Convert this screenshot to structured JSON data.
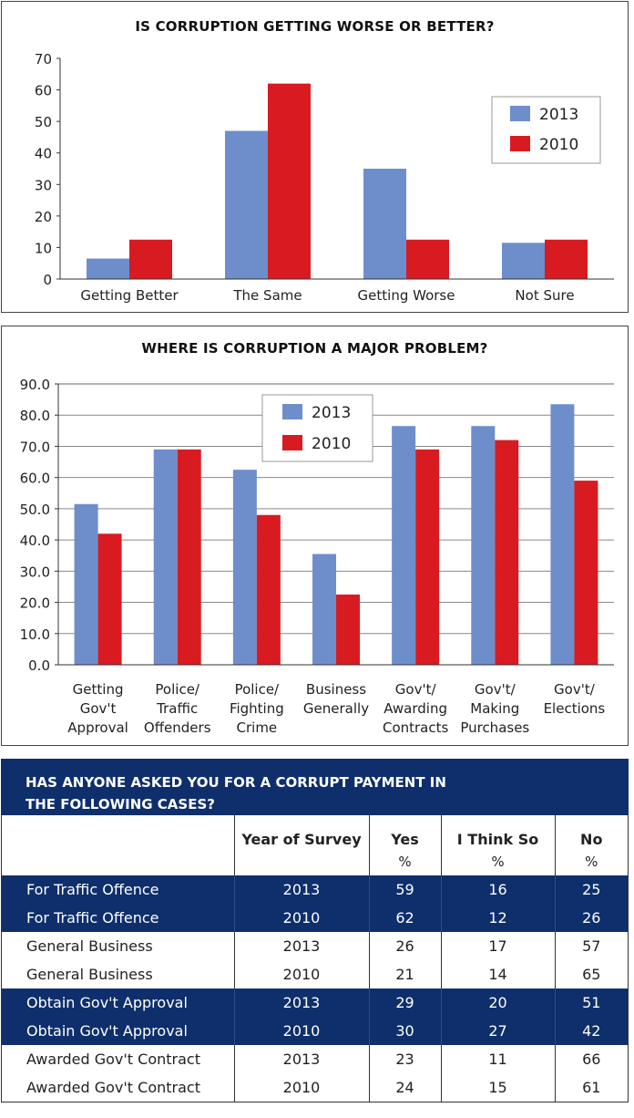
{
  "chart_data": [
    {
      "type": "bar",
      "title": "IS CORRUPTION GETTING WORSE OR BETTER?",
      "categories": [
        "Getting Better",
        "The Same",
        "Getting Worse",
        "Not Sure"
      ],
      "series": [
        {
          "name": "2013",
          "values": [
            6.5,
            47,
            35,
            11.5
          ],
          "color": "#6e8ecb"
        },
        {
          "name": "2010",
          "values": [
            12.5,
            62,
            12.5,
            12.5
          ],
          "color": "#d81b21"
        }
      ],
      "ylim": [
        0,
        70
      ],
      "yticks": [
        "0",
        "10",
        "20",
        "30",
        "40",
        "50",
        "60",
        "70"
      ],
      "legend": "right",
      "grid": false
    },
    {
      "type": "bar",
      "title": "WHERE IS CORRUPTION A MAJOR PROBLEM?",
      "categories": [
        [
          "Getting",
          "Gov't",
          "Approval"
        ],
        [
          "Police/",
          "Traffic",
          "Offenders"
        ],
        [
          "Police/",
          "Fighting",
          "Crime"
        ],
        [
          "Business",
          "Generally"
        ],
        [
          "Gov't/",
          "Awarding",
          "Contracts"
        ],
        [
          "Gov't/",
          "Making",
          "Purchases"
        ],
        [
          "Gov't/",
          "Elections"
        ]
      ],
      "series": [
        {
          "name": "2013",
          "values": [
            51.5,
            69,
            62.5,
            35.5,
            76.5,
            76.5,
            83.5
          ],
          "color": "#6e8ecb"
        },
        {
          "name": "2010",
          "values": [
            42,
            69,
            48,
            22.5,
            69,
            72,
            59
          ],
          "color": "#d81b21"
        }
      ],
      "ylim": [
        0,
        90
      ],
      "yticks": [
        "0.0",
        "10.0",
        "20.0",
        "30.0",
        "40.0",
        "50.0",
        "60.0",
        "70.0",
        "80.0",
        "90.0"
      ],
      "legend": "top-center",
      "grid": true
    }
  ],
  "table": {
    "title_line1": "HAS ANYONE ASKED YOU FOR A CORRUPT PAYMENT IN",
    "title_line2": "THE FOLLOWING CASES?",
    "col_year": "Year of Survey",
    "col_yes": "Yes",
    "col_think": "I Think So",
    "col_no": "No",
    "pct": "%",
    "rows": [
      {
        "label": "For Traffic Offence",
        "year": "2013",
        "yes": "59",
        "think": "16",
        "no": "25"
      },
      {
        "label": "For Traffic Offence",
        "year": "2010",
        "yes": "62",
        "think": "12",
        "no": "26"
      },
      {
        "label": "General Business",
        "year": "2013",
        "yes": "26",
        "think": "17",
        "no": "57"
      },
      {
        "label": "General Business",
        "year": "2010",
        "yes": "21",
        "think": "14",
        "no": "65"
      },
      {
        "label": "Obtain Gov't Approval",
        "year": "2013",
        "yes": "29",
        "think": "20",
        "no": "51"
      },
      {
        "label": "Obtain Gov't Approval",
        "year": "2010",
        "yes": "30",
        "think": "27",
        "no": "42"
      },
      {
        "label": "Awarded Gov't Contract",
        "year": "2013",
        "yes": "23",
        "think": "11",
        "no": "66"
      },
      {
        "label": "Awarded Gov't Contract",
        "year": "2010",
        "yes": "24",
        "think": "15",
        "no": "61"
      }
    ]
  }
}
